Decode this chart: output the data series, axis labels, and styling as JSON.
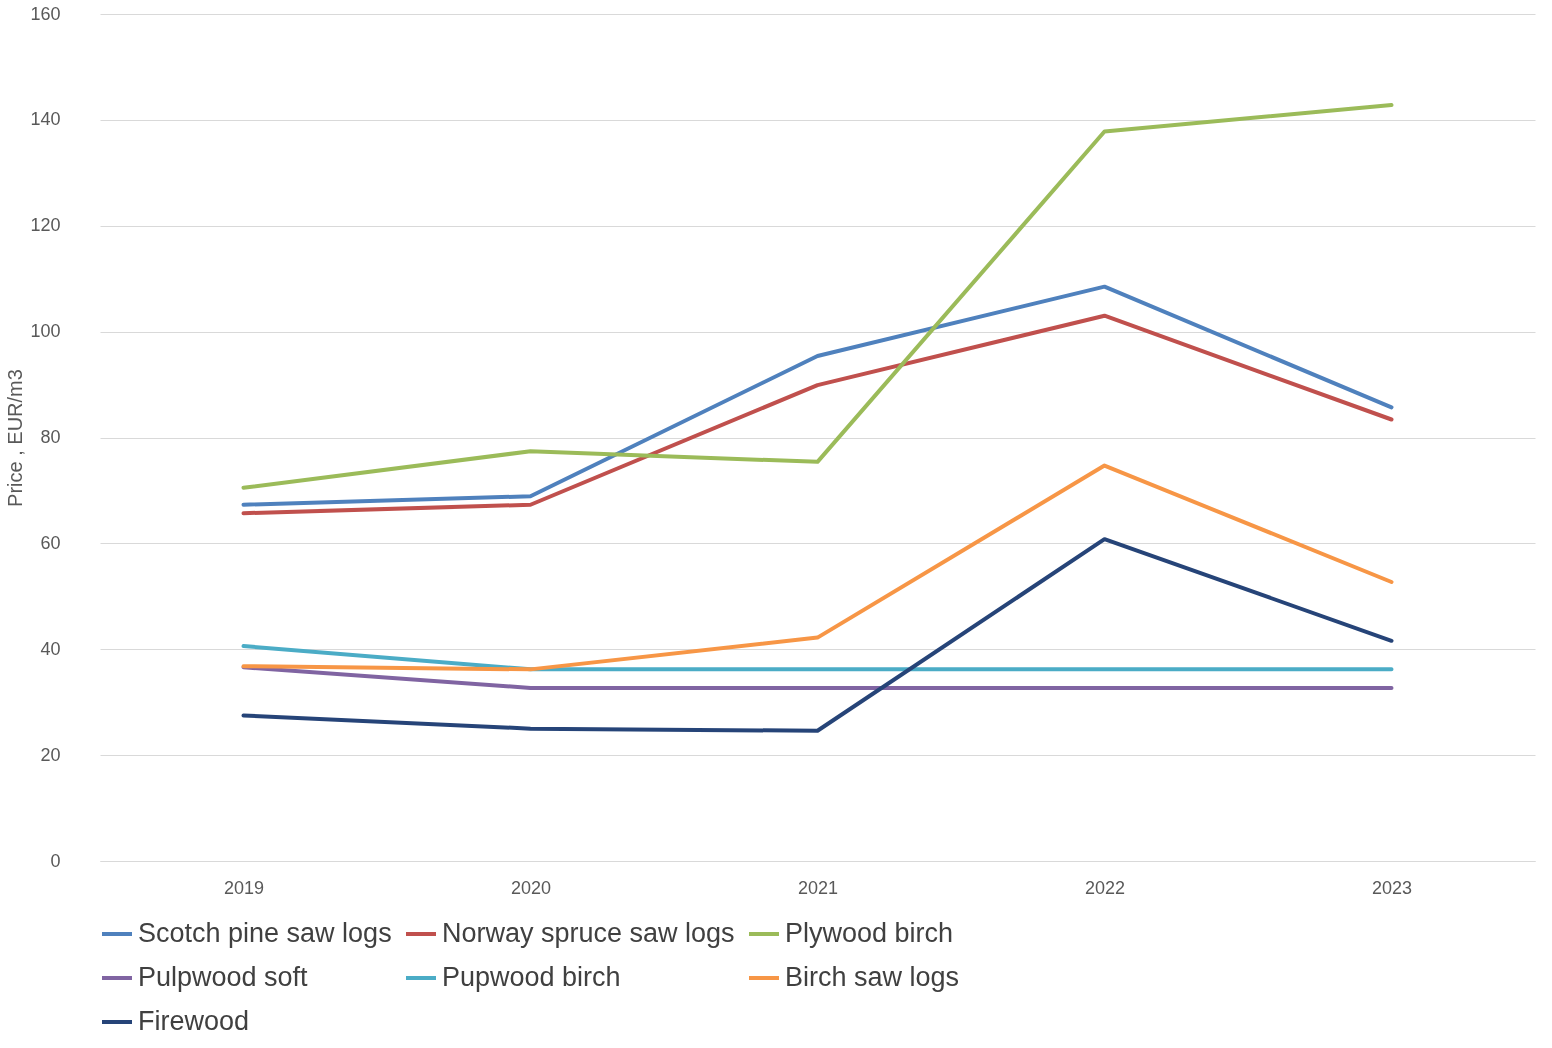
{
  "chart_data": {
    "type": "line",
    "ylabel": "Price , EUR/m3",
    "categories": [
      "2019",
      "2020",
      "2021",
      "2022",
      "2023"
    ],
    "ylim": [
      0,
      160
    ],
    "yticks": [
      0,
      20,
      40,
      60,
      80,
      100,
      120,
      140,
      160
    ],
    "grid": "y",
    "legend": "bottom",
    "marker": "none",
    "line_style": "solid",
    "series": [
      {
        "name": "Scotch pine saw logs",
        "color": "#4f81bd",
        "values": [
          67.3,
          68.9,
          95.4,
          108.5,
          85.7
        ]
      },
      {
        "name": "Norway spruce saw logs",
        "color": "#c0504d",
        "values": [
          65.7,
          67.3,
          89.9,
          103,
          83.4
        ]
      },
      {
        "name": "Plywood birch",
        "color": "#9bbb59",
        "values": [
          70.5,
          77.4,
          75.4,
          137.8,
          142.8
        ]
      },
      {
        "name": "Pulpwood soft",
        "color": "#8064a2",
        "values": [
          36.6,
          32.7,
          32.7,
          32.7,
          32.7
        ]
      },
      {
        "name": "Pupwood birch",
        "color": "#4bacc6",
        "values": [
          40.6,
          36.2,
          36.2,
          36.2,
          36.2
        ]
      },
      {
        "name": "Birch saw logs",
        "color": "#f79646",
        "values": [
          36.8,
          36.2,
          42.2,
          74.7,
          52.7
        ]
      },
      {
        "name": "Firewood",
        "color": "#264478",
        "values": [
          27.5,
          25,
          24.6,
          60.8,
          41.6
        ]
      }
    ]
  }
}
